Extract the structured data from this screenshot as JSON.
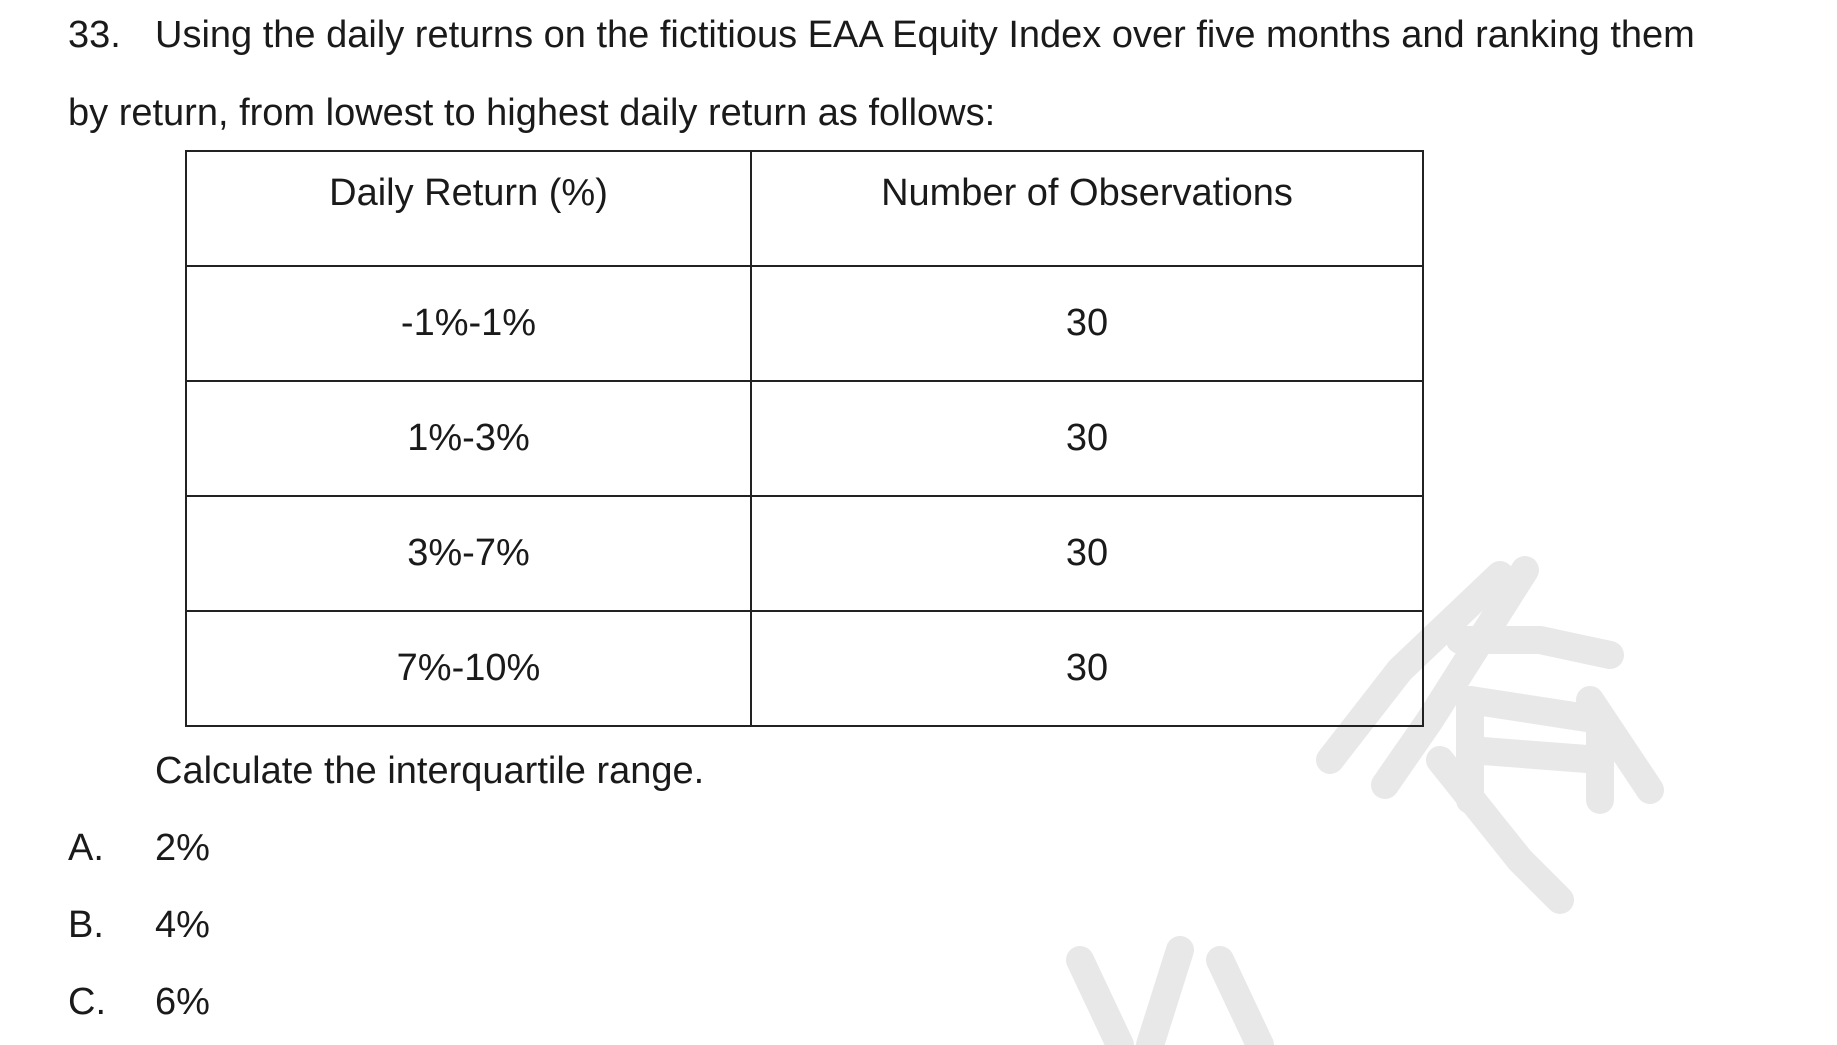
{
  "question": {
    "number": "33.",
    "line1": "Using the daily returns on the fictitious EAA Equity Index over five months and ranking them",
    "line2": "by return, from lowest to highest daily return as follows:"
  },
  "table": {
    "headers": [
      "Daily Return (%)",
      "Number of Observations"
    ],
    "rows": [
      [
        "-1%-1%",
        "30"
      ],
      [
        "1%-3%",
        "30"
      ],
      [
        "3%-7%",
        "30"
      ],
      [
        "7%-10%",
        "30"
      ]
    ]
  },
  "instruction": "Calculate the interquartile range.",
  "options": [
    {
      "letter": "A.",
      "text": "2%"
    },
    {
      "letter": "B.",
      "text": "4%"
    },
    {
      "letter": "C.",
      "text": "6%"
    }
  ],
  "watermark": {
    "color": "#e6e6e6"
  }
}
